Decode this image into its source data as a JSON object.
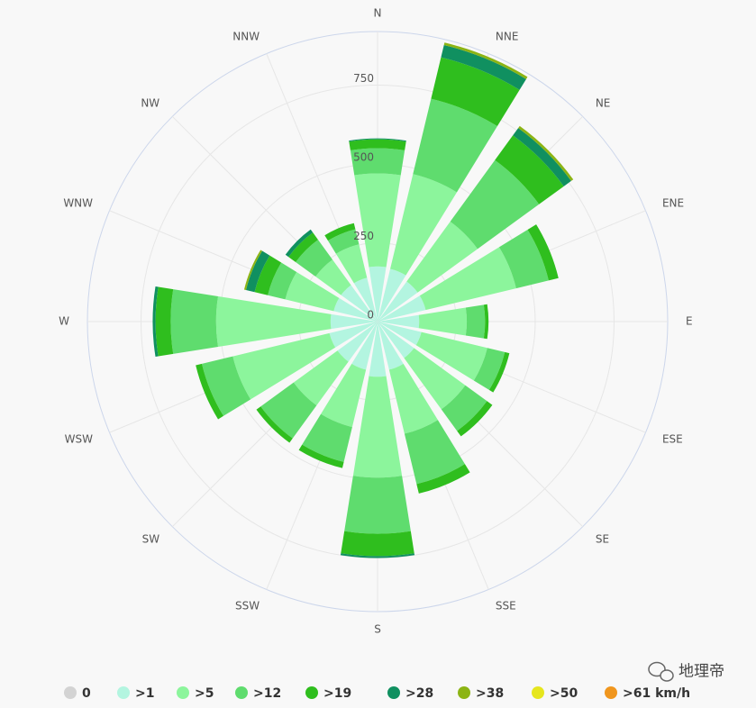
{
  "chart_data": {
    "type": "windrose",
    "categories": [
      "N",
      "NNE",
      "NE",
      "ENE",
      "E",
      "ESE",
      "SE",
      "SSE",
      "S",
      "SSW",
      "SW",
      "WSW",
      "W",
      "WNW",
      "NW",
      "NNW"
    ],
    "ylim": [
      0,
      920
    ],
    "yticks": [
      0,
      250,
      500,
      750
    ],
    "grid": true,
    "legend": "bottom",
    "series": [
      {
        "name": "0",
        "color": "#d3d3d3",
        "values": [
          0,
          0,
          0,
          0,
          0,
          0,
          0,
          0,
          0,
          0,
          0,
          0,
          0,
          0,
          0,
          0
        ]
      },
      {
        "name": ">1",
        "color": "#b3f5e0",
        "values": [
          175,
          172,
          157,
          157,
          132,
          143,
          143,
          157,
          175,
          157,
          157,
          157,
          149,
          143,
          143,
          143
        ]
      },
      {
        "name": ">5",
        "color": "#8cf59c",
        "values": [
          295,
          309,
          235,
          295,
          151,
          215,
          201,
          209,
          320,
          187,
          172,
          315,
          363,
          158,
          100,
          109
        ]
      },
      {
        "name": ">12",
        "color": "#5fdc6e",
        "values": [
          80,
          246,
          241,
          106,
          58,
          57,
          85,
          164,
          178,
          114,
          129,
          101,
          144,
          57,
          78,
          49
        ]
      },
      {
        "name": ">19",
        "color": "#2fbe1e",
        "values": [
          28,
          135,
          97,
          32,
          11,
          15,
          21,
          31,
          71,
          20,
          17,
          20,
          48,
          43,
          28,
          20
        ]
      },
      {
        "name": ">28",
        "color": "#109060",
        "values": [
          3,
          40,
          29,
          0,
          0,
          0,
          0,
          0,
          6,
          0,
          0,
          0,
          9,
          28,
          12,
          0
        ]
      },
      {
        "name": ">38",
        "color": "#8cb414",
        "values": [
          0,
          8,
          8,
          0,
          0,
          0,
          0,
          0,
          0,
          0,
          0,
          0,
          0,
          6,
          0,
          0
        ]
      },
      {
        "name": ">50",
        "color": "#e6e61e",
        "values": [
          0,
          0,
          0,
          0,
          0,
          0,
          0,
          0,
          0,
          0,
          0,
          0,
          0,
          0,
          0,
          0
        ]
      },
      {
        "name": ">61 km/h",
        "color": "#f0961e",
        "values": [
          0,
          0,
          0,
          0,
          0,
          0,
          0,
          0,
          0,
          0,
          0,
          0,
          0,
          0,
          0,
          0
        ]
      }
    ]
  },
  "watermark": "地理帝"
}
